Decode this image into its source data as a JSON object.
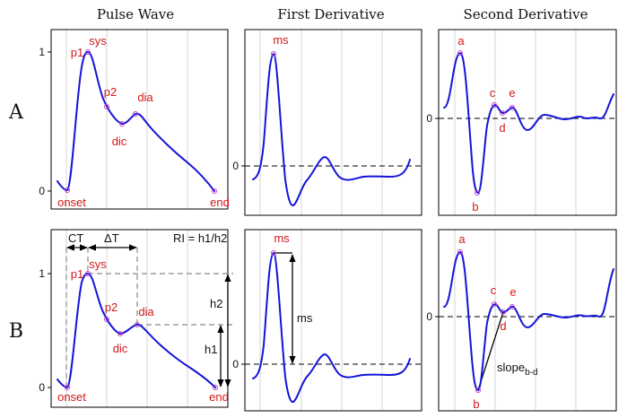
{
  "columns": {
    "pulse": "Pulse Wave",
    "first": "First Derivative",
    "second": "Second Derivative"
  },
  "rows": {
    "a": "A",
    "b": "B"
  },
  "ticks": {
    "one": "1",
    "zero": "0"
  },
  "labels": {
    "p1": "p1",
    "sys": "sys",
    "p2": "p2",
    "dia": "dia",
    "dic": "dic",
    "onset": "onset",
    "end": "end",
    "ms": "ms",
    "a": "a",
    "b": "b",
    "c": "c",
    "d": "d",
    "e": "e"
  },
  "annotations": {
    "ct": "CT",
    "delta_t": "ΔT",
    "ri": "RI = h1/h2",
    "h1": "h1",
    "h2": "h2",
    "ms": "ms",
    "slope": "slope",
    "slope_sub": "b-d"
  },
  "colors": {
    "curve": "#1414d8",
    "label": "#d21818",
    "marker": "#c83cc8"
  }
}
